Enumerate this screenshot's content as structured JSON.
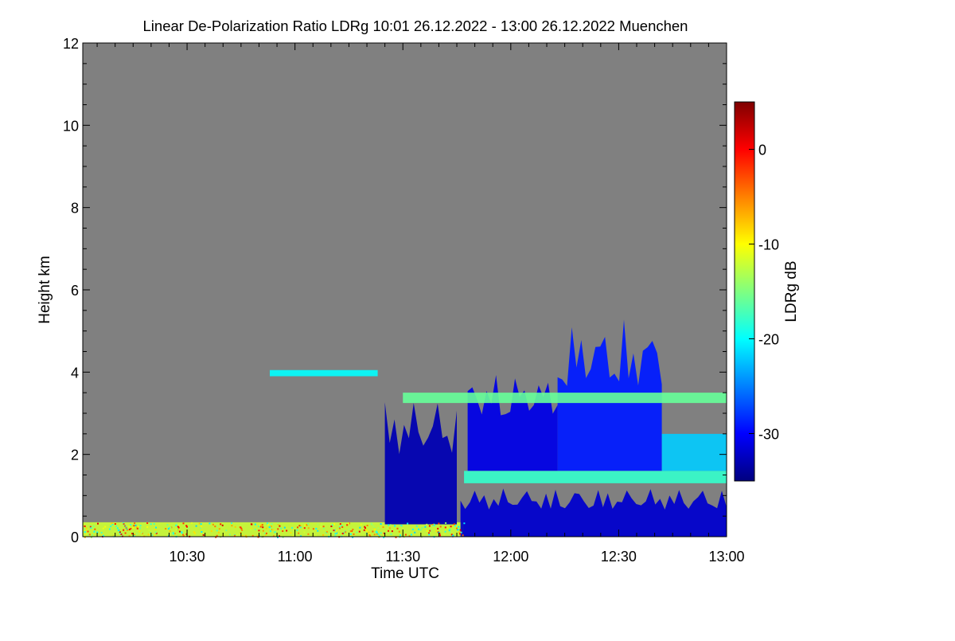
{
  "chart_data": {
    "type": "heatmap",
    "title": "Linear De-Polarization Ratio LDRg   10:01 26.12.2022 - 13:00 26.12.2022 Muenchen",
    "xlabel": "Time UTC",
    "ylabel": "Height km",
    "xlim": [
      "10:01",
      "13:00"
    ],
    "ylim": [
      0,
      12
    ],
    "x_ticks": [
      "10:30",
      "11:00",
      "11:30",
      "12:00",
      "12:30",
      "13:00"
    ],
    "y_ticks": [
      "0",
      "2",
      "4",
      "6",
      "8",
      "10",
      "12"
    ],
    "colorbar": {
      "label": "LDRg dB",
      "range": [
        -35,
        5
      ],
      "ticks": [
        "0",
        "-10",
        "-20",
        "-30"
      ],
      "colors": [
        "#00007f",
        "#0000ff",
        "#0080ff",
        "#00ffff",
        "#80ff80",
        "#ffff00",
        "#ff8000",
        "#ff0000",
        "#7f0000"
      ]
    },
    "background_color": "#808080",
    "features": [
      {
        "start": "10:01",
        "end": "11:47",
        "base_km": 0.0,
        "top_km": 0.35,
        "ldr_db": -12
      },
      {
        "start": "11:46",
        "end": "13:00",
        "base_km": 0.0,
        "top_km": 1.2,
        "ldr_db": -32
      },
      {
        "start": "11:47",
        "end": "13:00",
        "base_km": 1.3,
        "top_km": 1.6,
        "ldr_db": -18
      },
      {
        "start": "11:48",
        "end": "12:13",
        "base_km": 1.6,
        "top_km": 4.0,
        "ldr_db": -31
      },
      {
        "start": "12:13",
        "end": "12:42",
        "base_km": 1.6,
        "top_km": 5.3,
        "ldr_db": -29
      },
      {
        "start": "12:42",
        "end": "13:00",
        "base_km": 1.6,
        "top_km": 2.5,
        "ldr_db": -22
      },
      {
        "start": "11:25",
        "end": "11:45",
        "base_km": 0.3,
        "top_km": 3.4,
        "ldr_db": -33
      },
      {
        "start": "10:53",
        "end": "11:23",
        "base_km": 3.9,
        "top_km": 4.05,
        "ldr_db": -20
      },
      {
        "start": "11:30",
        "end": "13:00",
        "base_km": 3.25,
        "top_km": 3.5,
        "ldr_db": -16
      }
    ]
  }
}
